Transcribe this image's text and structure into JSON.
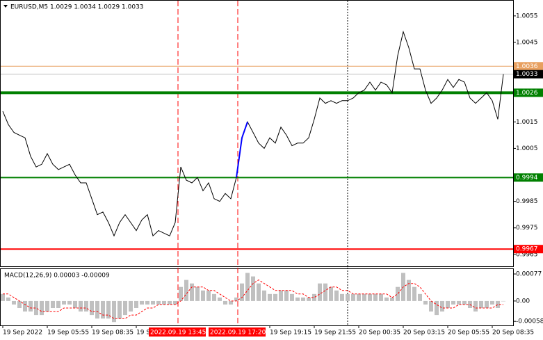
{
  "chart_data": [
    {
      "type": "line",
      "title": "EURUSD,M5  1.0029 1.0034 1.0029 1.0033",
      "x": [
        195,
        215,
        235,
        255,
        275,
        295,
        315,
        335,
        355,
        375,
        395,
        415,
        435,
        455,
        475,
        495,
        515,
        535,
        555,
        575,
        595,
        615,
        635,
        655,
        675,
        695,
        715,
        735,
        755,
        775,
        795,
        815,
        835,
        855,
        875,
        895,
        915,
        935,
        955,
        975,
        995,
        1015,
        1035,
        1055,
        1075,
        1095,
        1115,
        1135,
        1155,
        1175,
        1195,
        1215,
        1235,
        1255,
        1275,
        1295,
        1315,
        1335,
        1355,
        1375,
        1395,
        1415,
        1435,
        1455,
        1475,
        1495,
        1515,
        1535,
        1555,
        1575,
        1595,
        1615,
        1635,
        1655,
        1675,
        1695,
        1715,
        1735,
        1755,
        1775,
        1795,
        1815,
        1835,
        1855,
        1875,
        1895,
        1915,
        1935,
        1955,
        1975,
        1995
      ],
      "series": [
        {
          "color": "#000000",
          "values": [
            1.0019,
            1.0014,
            1.0011,
            1.001,
            1.0009,
            1.0002,
            0.9998,
            0.9999,
            1.0003,
            0.9999,
            0.9997,
            0.9998,
            0.9999,
            0.9995,
            0.9992,
            0.9992,
            0.9986,
            0.998,
            0.9981,
            0.9977,
            0.9972,
            0.9977,
            0.998,
            0.9977,
            0.9974,
            0.9978,
            0.998,
            0.9972,
            0.9974,
            0.9973,
            0.9972,
            0.9977,
            0.9998,
            0.9993,
            0.9992,
            0.9994,
            0.9989,
            0.9992,
            0.9986,
            0.9985,
            0.9988,
            0.9986,
            0.9994,
            1.0009,
            1.0015,
            1.0011,
            1.0007,
            1.0005,
            1.0009,
            1.0007,
            1.0013,
            1.001,
            1.0006,
            1.0007,
            1.0007,
            1.0009,
            1.0016,
            1.0024,
            1.0022,
            1.0023,
            1.0022,
            1.0023,
            1.0023,
            1.0024,
            1.0026,
            1.0027,
            1.003,
            1.0027,
            1.003,
            1.0029,
            1.0026,
            1.004,
            1.0049,
            1.0043,
            1.0035,
            1.0035,
            1.0027,
            1.0022,
            1.0024,
            1.0027,
            1.0031,
            1.0028,
            1.0031,
            1.003,
            1.0024,
            1.0022,
            1.0024,
            1.0026,
            1.0023,
            1.0016,
            1.0033
          ]
        },
        {
          "color": "#0000ff",
          "x": [
            1035,
            1055,
            1075
          ],
          "values": [
            0.9994,
            1.0009,
            1.0015
          ]
        }
      ],
      "xlim": [
        185,
        2030
      ],
      "ylim": [
        0.99605,
        1.0061
      ],
      "yticks": [
        1.0055,
        1.0045,
        1.0015,
        1.0005,
        0.9985,
        0.9975,
        0.9965
      ],
      "xticks": [
        {
          "value": 195,
          "label": "19 Sep 2022"
        },
        {
          "value": 355,
          "label": "19 Sep 05:55"
        },
        {
          "value": 515,
          "label": "19 Sep 08:35"
        },
        {
          "value": 675,
          "label": "19 Se"
        },
        {
          "value": 1155,
          "label": "19 Sep 19:15"
        },
        {
          "value": 1315,
          "label": "19 Sep 21:55"
        },
        {
          "value": 1475,
          "label": "20 Sep 00:35"
        },
        {
          "value": 1635,
          "label": "20 Sep 03:15"
        },
        {
          "value": 1795,
          "label": "20 Sep 05:55"
        },
        {
          "value": 1955,
          "label": "20 Sep 08:35"
        }
      ],
      "hlines": [
        {
          "value": 1.0036,
          "color": "#e8a060",
          "width": 1
        },
        {
          "value": 1.0033,
          "color": "#c0c0c0",
          "label_color": "#000000",
          "width": 1
        },
        {
          "value": 1.0026,
          "color": "#008000",
          "width": 4
        },
        {
          "value": 0.9994,
          "color": "#008000",
          "width": 2
        },
        {
          "value": 0.9967,
          "color": "#ff0000",
          "width": 2
        }
      ],
      "vlines": [
        {
          "value": 825,
          "label": "2022.09.19 13:45",
          "color": "#ff0000",
          "dash": "8,4"
        },
        {
          "value": 1040,
          "label": "2022.09.19 17:20",
          "color": "#ff0000",
          "dash": "8,4"
        },
        {
          "value": 1435,
          "color": "#000000",
          "dash": "2,2"
        }
      ]
    },
    {
      "type": "macd",
      "title": "MACD(12,26,9) 0.00003 -0.00009",
      "series": [
        {
          "type": "bar",
          "color": "#c0c0c0",
          "values": [
            0.0002,
            0.0001,
            -0.0001,
            -0.0002,
            -0.0003,
            -0.0003,
            -0.0004,
            -0.0004,
            -0.0003,
            -0.0002,
            -0.0002,
            -0.0001,
            -0.0001,
            -0.0002,
            -0.0003,
            -0.0003,
            -0.0004,
            -0.0005,
            -0.0005,
            -0.0005,
            -0.0006,
            -0.0005,
            -0.0004,
            -0.0003,
            -0.0002,
            -0.0001,
            -0.0001,
            -0.0001,
            -0.0001,
            -0.0001,
            -0.0001,
            -0.0001,
            0.0004,
            0.0006,
            0.0005,
            0.0004,
            0.0003,
            0.0003,
            0.0002,
            0.0001,
            -0.0001,
            -0.0001,
            0.0001,
            0.0005,
            0.0008,
            0.0007,
            0.0005,
            0.0003,
            0.0002,
            0.0002,
            0.0003,
            0.0003,
            0.0002,
            0.0001,
            0.0001,
            0.0001,
            0.0002,
            0.0005,
            0.0005,
            0.0004,
            0.0003,
            0.0002,
            0.0002,
            0.0002,
            0.0002,
            0.0002,
            0.0002,
            0.0002,
            0.0002,
            0.0001,
            0.0001,
            0.0004,
            0.0008,
            0.0006,
            0.0004,
            0.0002,
            -0.0001,
            -0.0003,
            -0.0004,
            -0.0003,
            -0.0002,
            -0.0001,
            -0.0001,
            -0.0001,
            -0.0002,
            -0.0003,
            -0.0002,
            -0.0002,
            -0.0001,
            -0.0002,
            0
          ]
        },
        {
          "type": "line",
          "color": "#ff0000",
          "values": [
            0.0002,
            0.0002,
            0.0001,
            0,
            -0.0001,
            -0.0002,
            -0.0002,
            -0.0003,
            -0.0003,
            -0.0003,
            -0.0003,
            -0.0002,
            -0.0002,
            -0.0002,
            -0.0002,
            -0.0002,
            -0.0003,
            -0.0003,
            -0.0004,
            -0.0004,
            -0.0005,
            -0.0005,
            -0.0005,
            -0.0004,
            -0.0004,
            -0.0003,
            -0.0002,
            -0.0002,
            -0.0001,
            -0.0001,
            -0.0001,
            -0.0001,
            0,
            0.0002,
            0.0004,
            0.0004,
            0.0004,
            0.0003,
            0.0003,
            0.0002,
            0.0001,
            0,
            0,
            0.0001,
            0.0003,
            0.0005,
            0.0006,
            0.0005,
            0.0004,
            0.0003,
            0.0003,
            0.0003,
            0.0003,
            0.0002,
            0.0002,
            0.0001,
            0.0001,
            0.0002,
            0.0003,
            0.0004,
            0.0004,
            0.0003,
            0.0003,
            0.0002,
            0.0002,
            0.0002,
            0.0002,
            0.0002,
            0.0002,
            0.0002,
            0.0001,
            0.0002,
            0.0004,
            0.0005,
            0.0005,
            0.0004,
            0.0002,
            0,
            -0.0001,
            -0.0002,
            -0.0002,
            -0.0002,
            -0.0001,
            -0.0001,
            -0.0001,
            -0.0002,
            -0.0002,
            -0.0002,
            -0.0002,
            -0.0001,
            -0.0001
          ]
        }
      ],
      "ylim": [
        -0.000695,
        0.000929
      ],
      "yticks": [
        0.00077,
        {
          "value": 0,
          "label": "0.00"
        },
        -0.00058
      ]
    }
  ]
}
